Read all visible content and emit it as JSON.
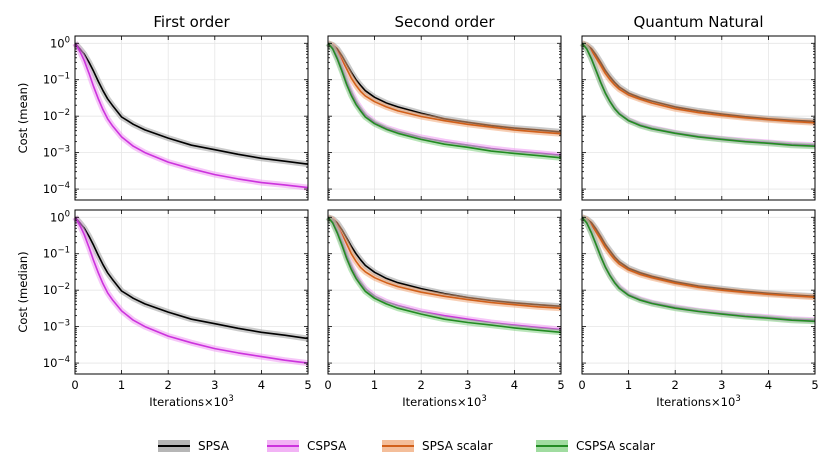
{
  "chart_data": {
    "type": "line",
    "column_titles": [
      "First order",
      "Second order",
      "Quantum Natural"
    ],
    "row_ylabels": [
      "Cost (mean)",
      "Cost (median)"
    ],
    "xlabel_prefix": "Iterations",
    "xlabel_times": "×10",
    "xlabel_exp": "3",
    "x_ticks": [
      0,
      1,
      2,
      3,
      4,
      5
    ],
    "xlim": [
      0,
      5
    ],
    "yscale": "log",
    "ylim_log10": [
      -4.3,
      0.2
    ],
    "y_ticks": [
      {
        "base": "10",
        "exp": "0",
        "value": 1
      },
      {
        "base": "10",
        "exp": "−1",
        "value": 0.1
      },
      {
        "base": "10",
        "exp": "−2",
        "value": 0.01
      },
      {
        "base": "10",
        "exp": "−3",
        "value": 0.001
      },
      {
        "base": "10",
        "exp": "−4",
        "value": 0.0001
      }
    ],
    "grid": true,
    "legend_position": "bottom-center",
    "legend": [
      {
        "name": "SPSA",
        "color": "#000000",
        "band": "#9e9e9e"
      },
      {
        "name": "CSPSA",
        "color": "#cc33dd",
        "band": "#ee99f2"
      },
      {
        "name": "SPSA scalar",
        "color": "#d2601a",
        "band": "#f0a878"
      },
      {
        "name": "CSPSA scalar",
        "color": "#228b22",
        "band": "#80d080"
      }
    ],
    "x": [
      0,
      0.1,
      0.2,
      0.3,
      0.4,
      0.5,
      0.6,
      0.7,
      0.8,
      1.0,
      1.25,
      1.5,
      2.0,
      2.5,
      3.0,
      3.5,
      4.0,
      4.5,
      5.0
    ],
    "panels": [
      {
        "row": 0,
        "col": 0,
        "series": [
          {
            "name": "SPSA",
            "values": [
              1,
              0.72,
              0.5,
              0.3,
              0.17,
              0.09,
              0.05,
              0.03,
              0.02,
              0.0095,
              0.006,
              0.0042,
              0.0025,
              0.0016,
              0.0012,
              0.0009,
              0.0007,
              0.00058,
              0.00048
            ]
          },
          {
            "name": "CSPSA",
            "values": [
              1,
              0.62,
              0.33,
              0.15,
              0.065,
              0.03,
              0.015,
              0.0085,
              0.0055,
              0.0027,
              0.0015,
              0.001,
              0.00055,
              0.00036,
              0.00025,
              0.00019,
              0.00015,
              0.00013,
              0.00011
            ]
          }
        ]
      },
      {
        "row": 0,
        "col": 1,
        "series": [
          {
            "name": "SPSA",
            "values": [
              1,
              0.9,
              0.7,
              0.45,
              0.27,
              0.16,
              0.1,
              0.07,
              0.05,
              0.033,
              0.023,
              0.018,
              0.012,
              0.0085,
              0.0068,
              0.0055,
              0.0047,
              0.0042,
              0.0037
            ]
          },
          {
            "name": "SPSA scalar",
            "values": [
              1,
              0.85,
              0.6,
              0.35,
              0.2,
              0.11,
              0.07,
              0.048,
              0.036,
              0.025,
              0.018,
              0.014,
              0.0098,
              0.0075,
              0.006,
              0.005,
              0.0042,
              0.0037,
              0.0033
            ]
          },
          {
            "name": "CSPSA",
            "values": [
              1,
              0.75,
              0.42,
              0.2,
              0.09,
              0.045,
              0.025,
              0.016,
              0.011,
              0.0068,
              0.0048,
              0.0038,
              0.0026,
              0.002,
              0.0016,
              0.0013,
              0.0011,
              0.00097,
              0.00085
            ]
          },
          {
            "name": "CSPSA scalar",
            "values": [
              1,
              0.7,
              0.37,
              0.17,
              0.075,
              0.037,
              0.021,
              0.014,
              0.0095,
              0.0062,
              0.0044,
              0.0034,
              0.0023,
              0.0017,
              0.0014,
              0.0011,
              0.00095,
              0.00083,
              0.00072
            ]
          }
        ]
      },
      {
        "row": 0,
        "col": 2,
        "series": [
          {
            "name": "SPSA",
            "values": [
              1,
              0.9,
              0.72,
              0.48,
              0.3,
              0.18,
              0.12,
              0.085,
              0.063,
              0.043,
              0.032,
              0.026,
              0.018,
              0.014,
              0.0115,
              0.0097,
              0.0085,
              0.0077,
              0.0072
            ]
          },
          {
            "name": "SPSA scalar",
            "values": [
              1,
              0.85,
              0.63,
              0.4,
              0.25,
              0.15,
              0.1,
              0.072,
              0.055,
              0.038,
              0.029,
              0.023,
              0.016,
              0.0125,
              0.0105,
              0.009,
              0.008,
              0.0072,
              0.0066
            ]
          },
          {
            "name": "CSPSA",
            "values": [
              1,
              0.72,
              0.4,
              0.19,
              0.09,
              0.045,
              0.026,
              0.017,
              0.012,
              0.0078,
              0.0058,
              0.0047,
              0.0035,
              0.0028,
              0.0024,
              0.0021,
              0.0019,
              0.0017,
              0.0016
            ]
          },
          {
            "name": "CSPSA scalar",
            "values": [
              1,
              0.7,
              0.38,
              0.18,
              0.085,
              0.043,
              0.025,
              0.016,
              0.0115,
              0.0075,
              0.0055,
              0.0045,
              0.0034,
              0.0027,
              0.0023,
              0.002,
              0.0018,
              0.0016,
              0.0015
            ]
          }
        ]
      },
      {
        "row": 1,
        "col": 0,
        "series": [
          {
            "name": "SPSA",
            "values": [
              1,
              0.72,
              0.5,
              0.3,
              0.17,
              0.09,
              0.05,
              0.03,
              0.02,
              0.0095,
              0.006,
              0.0042,
              0.0025,
              0.0016,
              0.0012,
              0.0009,
              0.0007,
              0.00058,
              0.00047
            ]
          },
          {
            "name": "CSPSA",
            "values": [
              1,
              0.62,
              0.33,
              0.15,
              0.065,
              0.03,
              0.015,
              0.0085,
              0.0055,
              0.0027,
              0.0015,
              0.001,
              0.00055,
              0.00036,
              0.00025,
              0.00019,
              0.00015,
              0.00012,
              0.0001
            ]
          }
        ]
      },
      {
        "row": 1,
        "col": 1,
        "series": [
          {
            "name": "SPSA",
            "values": [
              1,
              0.9,
              0.7,
              0.45,
              0.27,
              0.16,
              0.1,
              0.068,
              0.048,
              0.031,
              0.021,
              0.016,
              0.011,
              0.008,
              0.0063,
              0.0052,
              0.0045,
              0.004,
              0.0036
            ]
          },
          {
            "name": "SPSA scalar",
            "values": [
              1,
              0.85,
              0.58,
              0.34,
              0.19,
              0.1,
              0.062,
              0.042,
              0.032,
              0.022,
              0.016,
              0.0125,
              0.0088,
              0.0068,
              0.0055,
              0.0046,
              0.004,
              0.0035,
              0.0032
            ]
          },
          {
            "name": "CSPSA",
            "values": [
              1,
              0.75,
              0.42,
              0.2,
              0.09,
              0.045,
              0.025,
              0.016,
              0.011,
              0.0068,
              0.0048,
              0.0038,
              0.0026,
              0.002,
              0.0016,
              0.0013,
              0.0011,
              0.00095,
              0.00083
            ]
          },
          {
            "name": "CSPSA scalar",
            "values": [
              1,
              0.7,
              0.37,
              0.17,
              0.075,
              0.037,
              0.021,
              0.014,
              0.0093,
              0.006,
              0.0042,
              0.0032,
              0.0022,
              0.0016,
              0.0013,
              0.0011,
              0.00092,
              0.0008,
              0.0007
            ]
          }
        ]
      },
      {
        "row": 1,
        "col": 2,
        "series": [
          {
            "name": "SPSA",
            "values": [
              1,
              0.9,
              0.72,
              0.48,
              0.3,
              0.18,
              0.12,
              0.082,
              0.06,
              0.04,
              0.03,
              0.024,
              0.017,
              0.013,
              0.011,
              0.0093,
              0.0082,
              0.0074,
              0.0068
            ]
          },
          {
            "name": "SPSA scalar",
            "values": [
              1,
              0.85,
              0.63,
              0.4,
              0.25,
              0.15,
              0.1,
              0.07,
              0.052,
              0.036,
              0.027,
              0.022,
              0.0155,
              0.012,
              0.01,
              0.0087,
              0.0077,
              0.007,
              0.0064
            ]
          },
          {
            "name": "CSPSA",
            "values": [
              1,
              0.72,
              0.4,
              0.19,
              0.09,
              0.045,
              0.026,
              0.017,
              0.012,
              0.0076,
              0.0056,
              0.0045,
              0.0034,
              0.0027,
              0.0023,
              0.002,
              0.0018,
              0.0016,
              0.0015
            ]
          },
          {
            "name": "CSPSA scalar",
            "values": [
              1,
              0.7,
              0.38,
              0.18,
              0.085,
              0.043,
              0.025,
              0.016,
              0.0112,
              0.0072,
              0.0053,
              0.0043,
              0.0032,
              0.0026,
              0.0022,
              0.0019,
              0.0017,
              0.0015,
              0.0014
            ]
          }
        ]
      }
    ]
  }
}
